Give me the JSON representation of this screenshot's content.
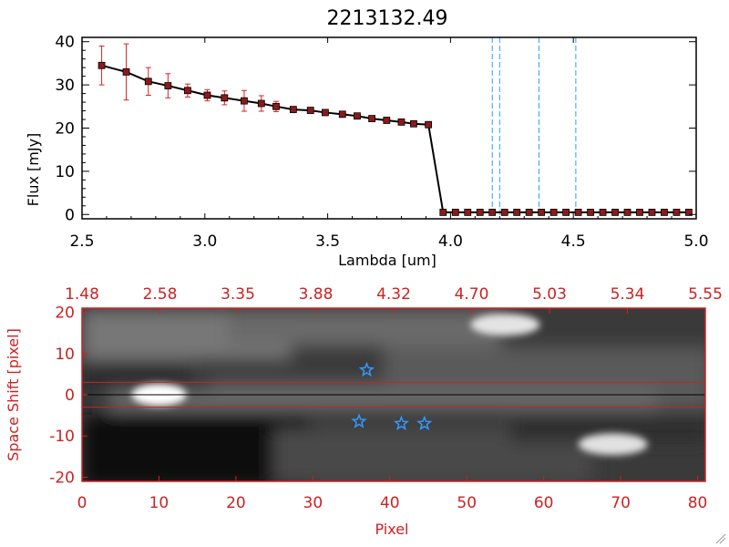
{
  "chart_data": [
    {
      "type": "line",
      "title": "2213132.49",
      "xlabel": "Lambda [um]",
      "ylabel": "Flux [mJy]",
      "xlim": [
        2.5,
        5.0
      ],
      "ylim": [
        -1,
        41
      ],
      "x_ticks": [
        "2.5",
        "3.0",
        "3.5",
        "4.0",
        "4.5",
        "5.0"
      ],
      "y_ticks": [
        "0",
        "10",
        "20",
        "30",
        "40"
      ],
      "series": [
        {
          "name": "flux",
          "x": [
            2.58,
            2.68,
            2.77,
            2.85,
            2.93,
            3.01,
            3.08,
            3.16,
            3.23,
            3.29,
            3.36,
            3.43,
            3.49,
            3.56,
            3.62,
            3.68,
            3.74,
            3.8,
            3.85,
            3.91,
            3.97,
            4.02,
            4.07,
            4.12,
            4.17,
            4.22,
            4.27,
            4.32,
            4.37,
            4.42,
            4.47,
            4.52,
            4.57,
            4.62,
            4.67,
            4.72,
            4.77,
            4.82,
            4.87,
            4.92,
            4.97
          ],
          "y": [
            34.5,
            33.0,
            30.8,
            29.8,
            28.7,
            27.6,
            27.0,
            26.3,
            25.7,
            25.0,
            24.3,
            24.1,
            23.6,
            23.2,
            22.8,
            22.2,
            21.8,
            21.4,
            21.0,
            20.8,
            0.5,
            0.5,
            0.5,
            0.5,
            0.5,
            0.5,
            0.5,
            0.5,
            0.5,
            0.5,
            0.5,
            0.5,
            0.5,
            0.5,
            0.5,
            0.5,
            0.5,
            0.5,
            0.5,
            0.5,
            0.5
          ],
          "yerr": [
            4.5,
            6.5,
            3.2,
            2.8,
            1.5,
            1.3,
            1.6,
            2.4,
            1.8,
            1.2,
            0.6,
            0.5,
            0.4,
            0.3,
            0.3,
            0.3,
            0.3,
            0.3,
            0.3,
            0.3,
            0.2,
            0.2,
            0.2,
            0.2,
            0.2,
            0.2,
            0.2,
            0.2,
            0.2,
            0.2,
            0.2,
            0.2,
            0.2,
            0.2,
            0.2,
            0.2,
            0.2,
            0.2,
            0.2,
            0.2,
            0.2
          ]
        }
      ],
      "vlines": [
        4.17,
        4.2,
        4.36,
        4.51
      ],
      "colors": {
        "line": "#000000",
        "marker": "#8b1a1a",
        "error": "#dd2222",
        "vline": "#3399ff"
      }
    },
    {
      "type": "heatmap",
      "xlabel": "Pixel",
      "ylabel": "Space Shift [pixel]",
      "xlim": [
        0,
        81
      ],
      "ylim": [
        -21,
        21
      ],
      "x_ticks": [
        "0",
        "10",
        "20",
        "30",
        "40",
        "50",
        "60",
        "70",
        "80"
      ],
      "y_ticks": [
        "-20",
        "-10",
        "0",
        "10",
        "20"
      ],
      "top_ticks": [
        "1.48",
        "2.58",
        "3.35",
        "3.88",
        "4.32",
        "4.70",
        "5.03",
        "5.34",
        "5.55"
      ],
      "hlines": [
        -3,
        3
      ],
      "centerline": 0,
      "blobs": [
        {
          "px": 10,
          "shift": 0,
          "brightness": 1.0
        },
        {
          "px": 55,
          "shift": 17,
          "brightness": 0.8
        },
        {
          "px": 69,
          "shift": -12,
          "brightness": 0.78
        }
      ],
      "stars": [
        {
          "px": 37,
          "shift": 6
        },
        {
          "px": 36,
          "shift": -6.5
        },
        {
          "px": 41.5,
          "shift": -7
        },
        {
          "px": 44.5,
          "shift": -7
        }
      ],
      "colors": {
        "axis": "#cc2222",
        "star": "#3399ff",
        "line": "#000000"
      }
    }
  ]
}
